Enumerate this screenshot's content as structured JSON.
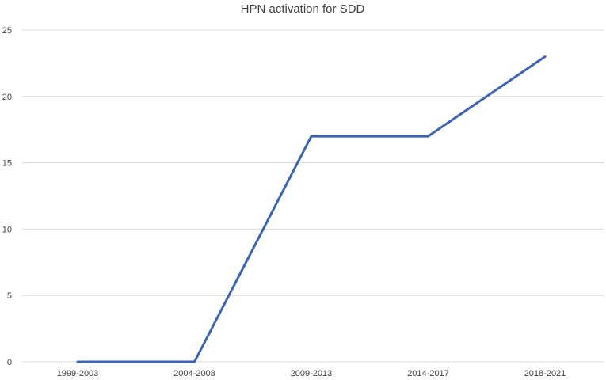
{
  "chart_data": {
    "type": "line",
    "title": "HPN activation for SDD",
    "xlabel": "",
    "ylabel": "",
    "categories": [
      "1999-2003",
      "2004-2008",
      "2009-2013",
      "2014-2017",
      "2018-2021"
    ],
    "series": [
      {
        "values": [
          0,
          0,
          17,
          17,
          23
        ],
        "color": "#3a64b8"
      }
    ],
    "ylim": [
      0,
      25
    ],
    "yticks": [
      0,
      5,
      10,
      15,
      20,
      25
    ],
    "grid": true,
    "legend": "none"
  }
}
